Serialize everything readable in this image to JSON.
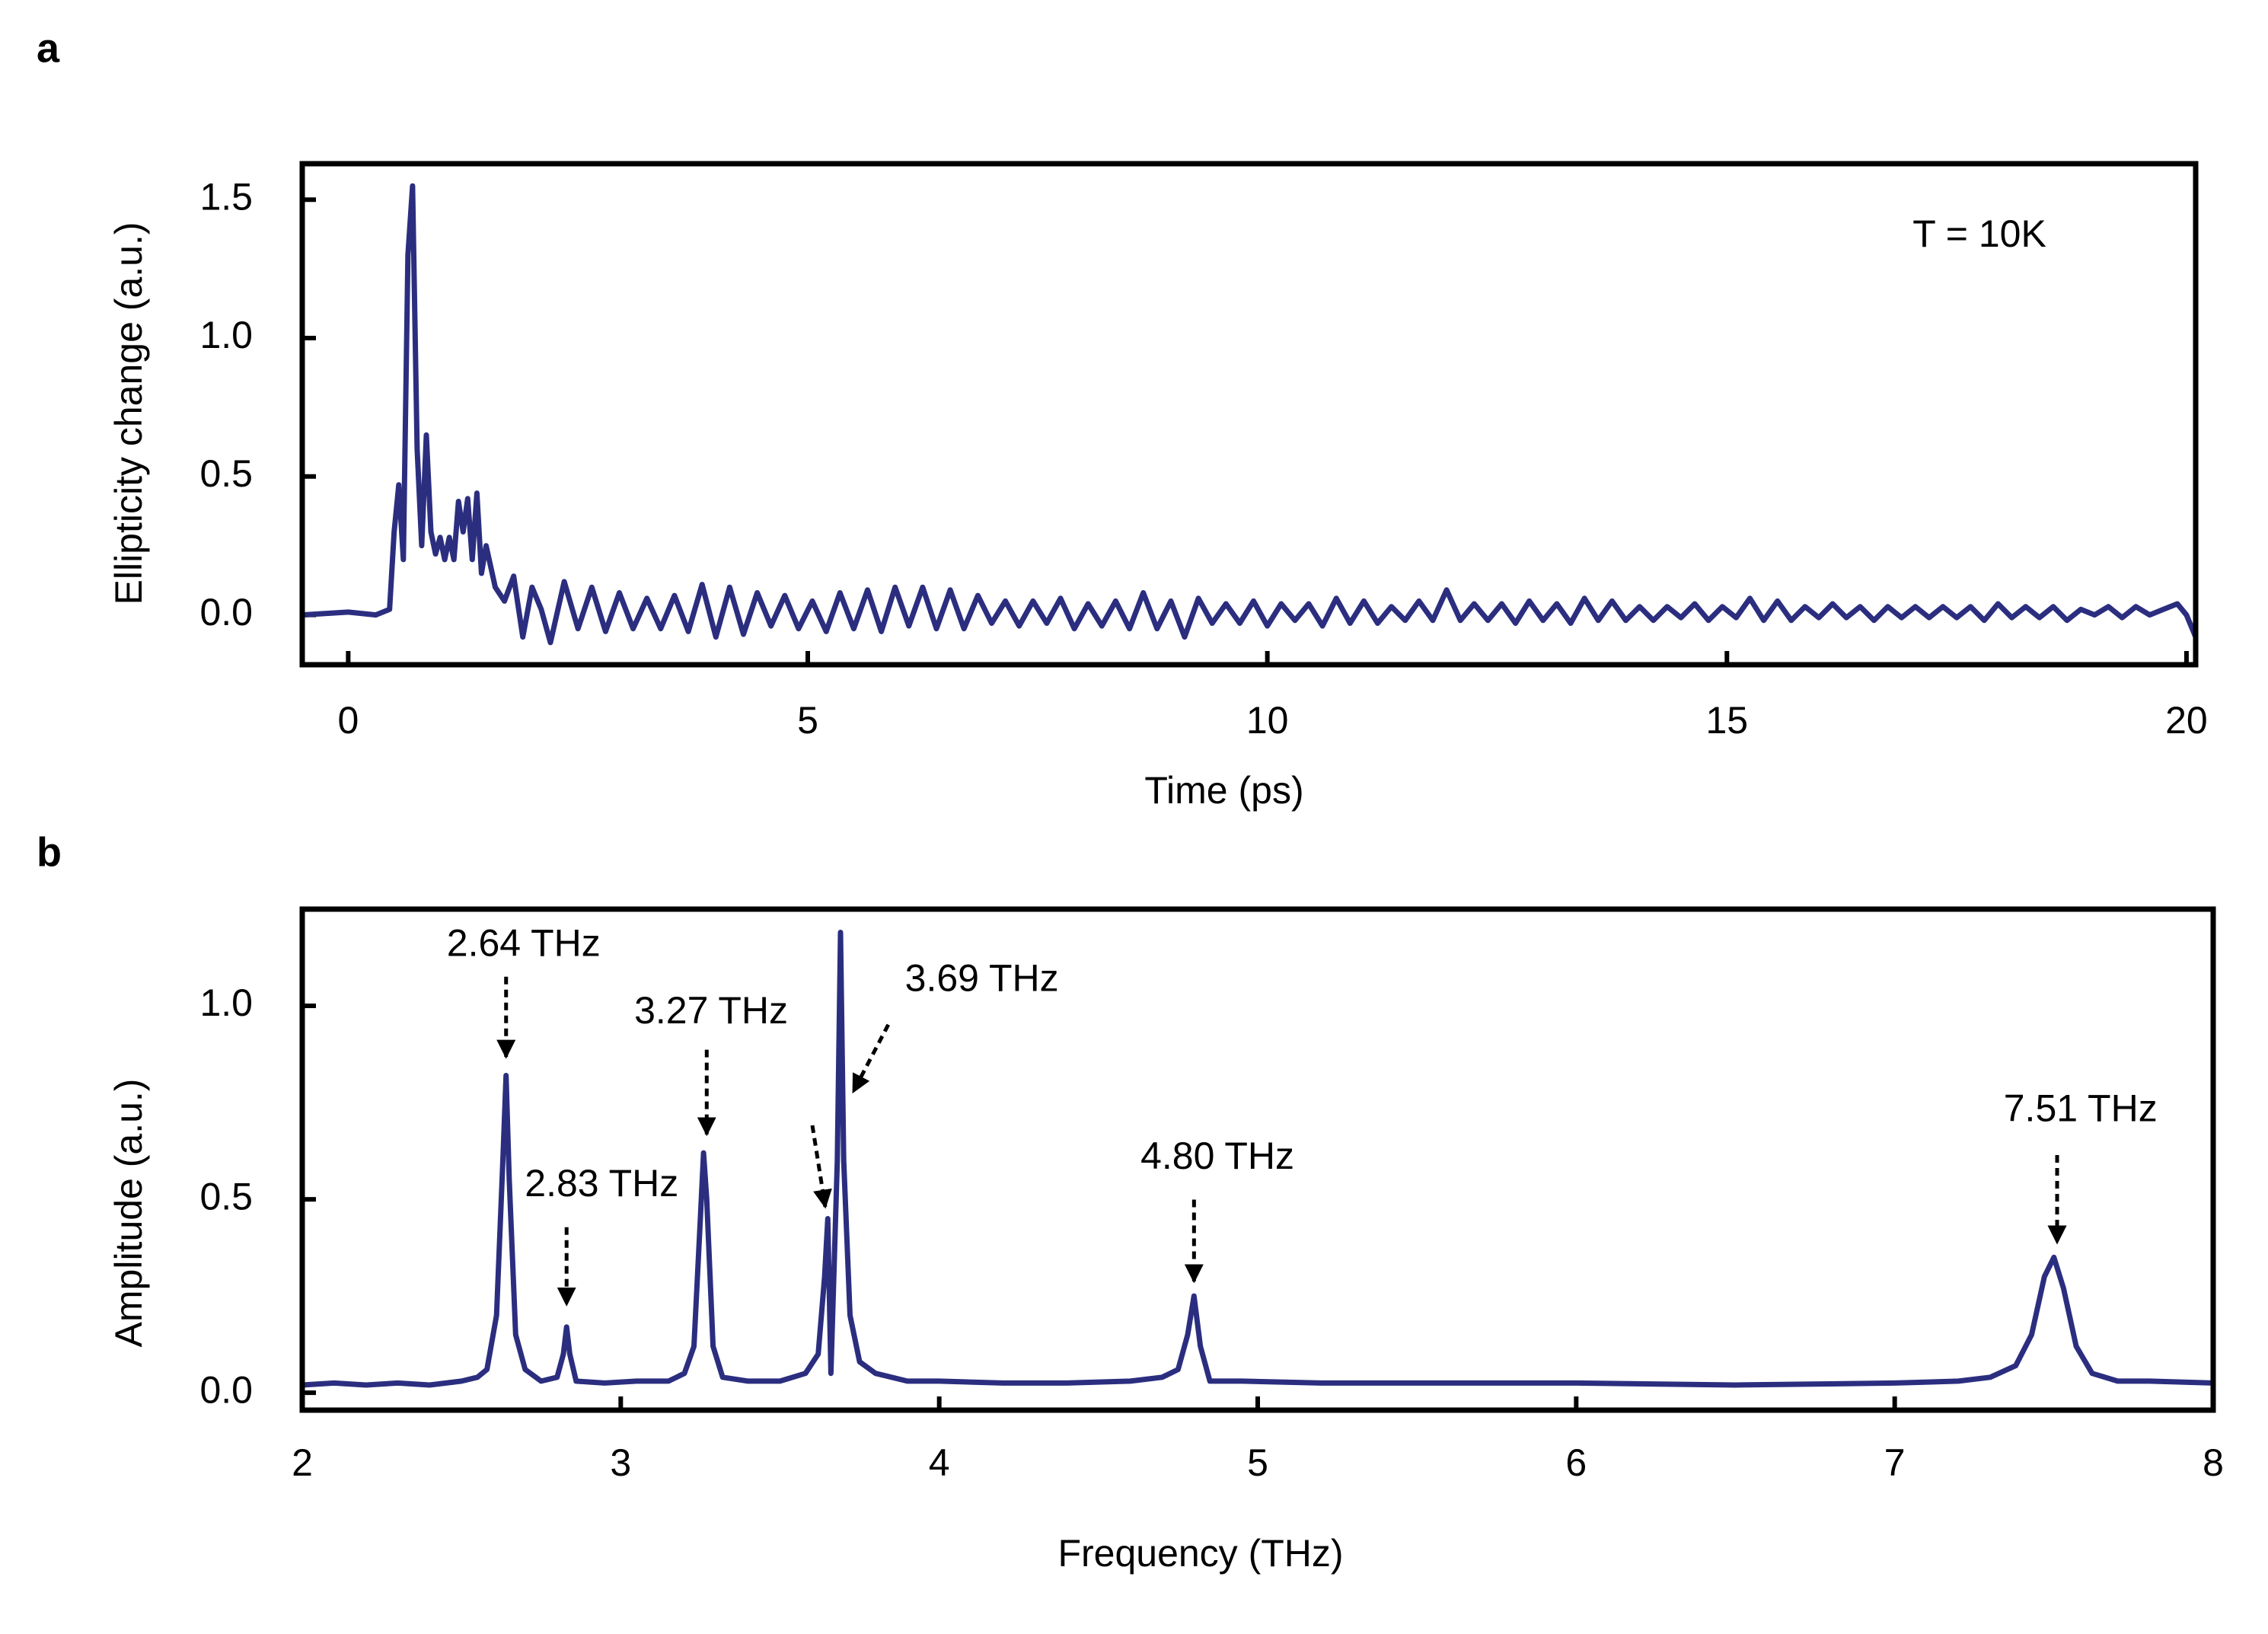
{
  "chart_data": [
    {
      "type": "line",
      "label": "a",
      "annotation": "T = 10K",
      "xlabel": "Time (ps)",
      "ylabel": "Ellipticity change (a.u.)",
      "color": "#2b2e7f",
      "xlim": [
        -0.5,
        20.1
      ],
      "ylim": [
        -0.18,
        1.63
      ],
      "xticks": [
        0,
        5,
        10,
        15,
        20
      ],
      "yticks": [
        {
          "value": 0,
          "label": "0.0"
        },
        0.5,
        {
          "value": 1,
          "label": "1.0"
        },
        1.5
      ],
      "x": [
        -0.5,
        0,
        0.3,
        0.45,
        0.5,
        0.55,
        0.6,
        0.65,
        0.7,
        0.75,
        0.8,
        0.85,
        0.9,
        0.95,
        1.0,
        1.05,
        1.1,
        1.15,
        1.2,
        1.25,
        1.3,
        1.35,
        1.4,
        1.45,
        1.5,
        1.6,
        1.7,
        1.8,
        1.9,
        2.0,
        2.1,
        2.2,
        2.35,
        2.5,
        2.65,
        2.8,
        2.95,
        3.1,
        3.25,
        3.4,
        3.55,
        3.7,
        3.85,
        4.0,
        4.15,
        4.3,
        4.45,
        4.6,
        4.75,
        4.9,
        5.05,
        5.2,
        5.35,
        5.5,
        5.65,
        5.8,
        5.95,
        6.1,
        6.25,
        6.4,
        6.55,
        6.7,
        6.85,
        7.0,
        7.15,
        7.3,
        7.45,
        7.6,
        7.75,
        7.9,
        8.05,
        8.2,
        8.35,
        8.5,
        8.65,
        8.8,
        8.95,
        9.1,
        9.25,
        9.4,
        9.55,
        9.7,
        9.85,
        10.0,
        10.15,
        10.3,
        10.45,
        10.6,
        10.75,
        10.9,
        11.05,
        11.2,
        11.35,
        11.5,
        11.65,
        11.8,
        11.95,
        12.1,
        12.25,
        12.4,
        12.55,
        12.7,
        12.85,
        13.0,
        13.15,
        13.3,
        13.45,
        13.6,
        13.75,
        13.9,
        14.05,
        14.2,
        14.35,
        14.5,
        14.65,
        14.8,
        14.95,
        15.1,
        15.25,
        15.4,
        15.55,
        15.7,
        15.85,
        16.0,
        16.15,
        16.3,
        16.45,
        16.6,
        16.75,
        16.9,
        17.05,
        17.2,
        17.35,
        17.5,
        17.65,
        17.8,
        17.95,
        18.1,
        18.25,
        18.4,
        18.55,
        18.7,
        18.85,
        19.0,
        19.15,
        19.3,
        19.45,
        19.6,
        19.75,
        19.9,
        20.0,
        20.1
      ],
      "values": [
        0.0,
        0.01,
        0.0,
        0.02,
        0.3,
        0.47,
        0.2,
        1.3,
        1.55,
        0.6,
        0.25,
        0.65,
        0.3,
        0.22,
        0.28,
        0.2,
        0.28,
        0.2,
        0.41,
        0.3,
        0.42,
        0.2,
        0.44,
        0.15,
        0.25,
        0.1,
        0.05,
        0.14,
        -0.08,
        0.1,
        0.02,
        -0.1,
        0.12,
        -0.05,
        0.1,
        -0.06,
        0.08,
        -0.05,
        0.06,
        -0.05,
        0.07,
        -0.06,
        0.11,
        -0.08,
        0.1,
        -0.07,
        0.08,
        -0.04,
        0.07,
        -0.05,
        0.05,
        -0.06,
        0.08,
        -0.05,
        0.09,
        -0.06,
        0.1,
        -0.04,
        0.1,
        -0.05,
        0.09,
        -0.05,
        0.07,
        -0.03,
        0.05,
        -0.04,
        0.05,
        -0.03,
        0.06,
        -0.05,
        0.04,
        -0.04,
        0.05,
        -0.05,
        0.08,
        -0.05,
        0.05,
        -0.08,
        0.06,
        -0.03,
        0.04,
        -0.03,
        0.05,
        -0.04,
        0.04,
        -0.02,
        0.04,
        -0.04,
        0.06,
        -0.03,
        0.05,
        -0.03,
        0.03,
        -0.02,
        0.05,
        -0.02,
        0.09,
        -0.02,
        0.04,
        -0.02,
        0.04,
        -0.03,
        0.05,
        -0.02,
        0.04,
        -0.03,
        0.06,
        -0.02,
        0.05,
        -0.02,
        0.03,
        -0.02,
        0.03,
        -0.01,
        0.04,
        -0.02,
        0.03,
        -0.01,
        0.06,
        -0.02,
        0.05,
        -0.02,
        0.03,
        -0.01,
        0.04,
        -0.01,
        0.03,
        -0.02,
        0.03,
        -0.01,
        0.03,
        -0.01,
        0.03,
        -0.01,
        0.03,
        -0.02,
        0.04,
        -0.01,
        0.03,
        -0.01,
        0.03,
        -0.02,
        0.02,
        0.0,
        0.03,
        -0.01,
        0.03,
        0.0,
        0.02,
        0.04,
        0.0,
        -0.08
      ]
    },
    {
      "type": "line",
      "label": "b",
      "xlabel": "Frequency (THz)",
      "ylabel": "Amplitude (a.u.)",
      "color": "#2b2e7f",
      "xlim": [
        2,
        8
      ],
      "ylim": [
        -0.045,
        1.25
      ],
      "xticks": [
        2,
        3,
        4,
        5,
        6,
        7,
        8
      ],
      "yticks": [
        {
          "value": 0,
          "label": "0.0"
        },
        0.5,
        {
          "value": 1,
          "label": "1.0"
        }
      ],
      "x": [
        2.0,
        2.1,
        2.2,
        2.3,
        2.4,
        2.5,
        2.55,
        2.58,
        2.61,
        2.63,
        2.64,
        2.65,
        2.67,
        2.7,
        2.75,
        2.8,
        2.82,
        2.83,
        2.84,
        2.86,
        2.95,
        3.05,
        3.15,
        3.2,
        3.23,
        3.25,
        3.26,
        3.27,
        3.29,
        3.32,
        3.4,
        3.5,
        3.58,
        3.62,
        3.64,
        3.65,
        3.66,
        3.68,
        3.69,
        3.7,
        3.72,
        3.75,
        3.8,
        3.9,
        4.0,
        4.2,
        4.4,
        4.6,
        4.7,
        4.75,
        4.78,
        4.8,
        4.82,
        4.85,
        4.95,
        5.2,
        5.5,
        6.0,
        6.5,
        7.0,
        7.2,
        7.3,
        7.38,
        7.43,
        7.47,
        7.5,
        7.53,
        7.57,
        7.62,
        7.7,
        7.8,
        8.0
      ],
      "values": [
        0.02,
        0.025,
        0.02,
        0.025,
        0.02,
        0.03,
        0.04,
        0.06,
        0.2,
        0.6,
        0.82,
        0.55,
        0.15,
        0.06,
        0.03,
        0.04,
        0.1,
        0.17,
        0.1,
        0.03,
        0.025,
        0.03,
        0.03,
        0.05,
        0.12,
        0.45,
        0.62,
        0.5,
        0.12,
        0.04,
        0.03,
        0.03,
        0.05,
        0.1,
        0.3,
        0.45,
        0.05,
        0.6,
        1.19,
        0.6,
        0.2,
        0.08,
        0.05,
        0.03,
        0.03,
        0.025,
        0.025,
        0.03,
        0.04,
        0.06,
        0.15,
        0.25,
        0.12,
        0.03,
        0.03,
        0.025,
        0.025,
        0.025,
        0.02,
        0.025,
        0.03,
        0.04,
        0.07,
        0.15,
        0.3,
        0.35,
        0.27,
        0.12,
        0.05,
        0.03,
        0.03,
        0.025
      ],
      "annotations": [
        {
          "text": "2.64 THz",
          "x": 2.64,
          "y": 0.86
        },
        {
          "text": "2.83 THz",
          "x": 2.83,
          "y": 0.22
        },
        {
          "text": "3.27 THz",
          "x": 3.27,
          "y": 0.66
        },
        {
          "text": "3.69 THz",
          "x": 3.73,
          "y": 0.77
        },
        {
          "text": "4.80 THz",
          "x": 4.8,
          "y": 0.28
        },
        {
          "text": "7.51 THz",
          "x": 7.51,
          "y": 0.38
        }
      ]
    }
  ]
}
